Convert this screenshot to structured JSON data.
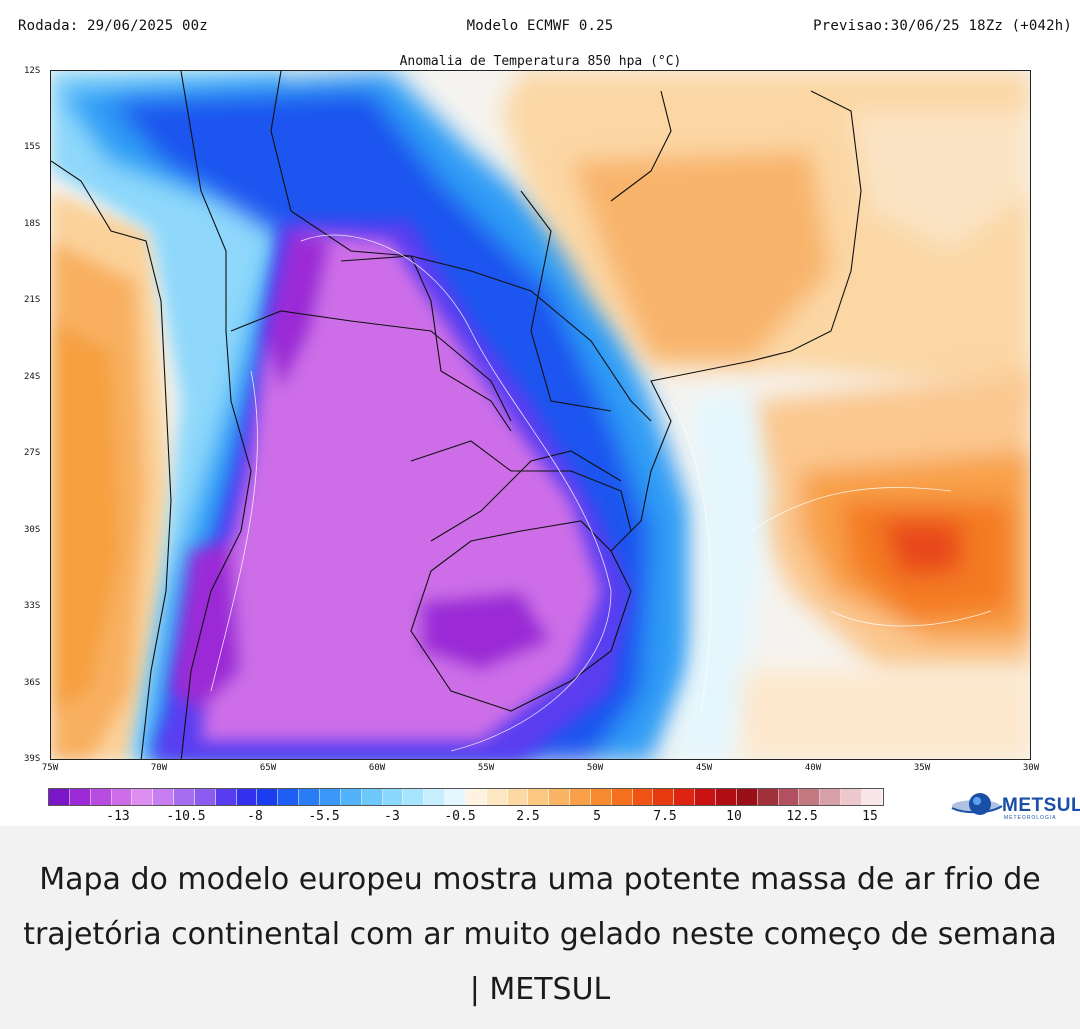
{
  "header": {
    "run": "Rodada: 29/06/2025 00z",
    "model": "Modelo ECMWF 0.25",
    "forecast": "Previsao:30/06/25 18Zz (+042h)"
  },
  "map": {
    "title": "Anomalia de Temperatura 850 hpa (°C)",
    "lat_labels": [
      "12S",
      "15S",
      "18S",
      "21S",
      "24S",
      "27S",
      "30S",
      "33S",
      "36S",
      "39S"
    ],
    "lon_labels": [
      "75W",
      "70W",
      "65W",
      "60W",
      "55W",
      "50W",
      "45W",
      "40W",
      "35W",
      "30W"
    ],
    "extent": {
      "lon_min": -75,
      "lon_max": -30,
      "lat_min": -39,
      "lat_max": -12
    },
    "field_regions": [
      {
        "name": "cold core south america",
        "level": "-13"
      },
      {
        "name": "warm anomaly southeast brazil",
        "level": "5"
      },
      {
        "name": "warm anomaly south atlantic",
        "level": "7.5"
      },
      {
        "name": "warm anomaly chile coast pacific",
        "level": "2.5"
      }
    ]
  },
  "colorbar": {
    "labels": [
      "-13",
      "-10.5",
      "-8",
      "-5.5",
      "-3",
      "-0.5",
      "2.5",
      "5",
      "7.5",
      "10",
      "12.5",
      "15"
    ],
    "colors": [
      "#7a16c8",
      "#9b2ad6",
      "#b84be0",
      "#cd6ee8",
      "#dd8ef0",
      "#c77ef0",
      "#a56ef0",
      "#8a5cf0",
      "#5a3cf0",
      "#3430f0",
      "#1a3df0",
      "#1e5ef5",
      "#2a7ef5",
      "#3c98f8",
      "#52b2fa",
      "#6ec8fb",
      "#8ad8fc",
      "#a8e4fd",
      "#c6eefe",
      "#e4f7fe",
      "#fff2e0",
      "#fde6c2",
      "#fcd9a2",
      "#fbc882",
      "#fab464",
      "#f8a048",
      "#f68a30",
      "#f4701e",
      "#f05414",
      "#e83a10",
      "#dc2410",
      "#c81212",
      "#b00e12",
      "#981016",
      "#a0303a",
      "#b05060",
      "#c47880",
      "#d8a0a8",
      "#ecc8cc",
      "#f8e6e8"
    ]
  },
  "logo": {
    "name": "METSUL",
    "tagline": "METEOROLOGIA"
  },
  "caption": "Mapa do modelo europeu mostra uma potente massa de ar frio de trajetória continental com ar muito gelado neste começo de semana | METSUL"
}
